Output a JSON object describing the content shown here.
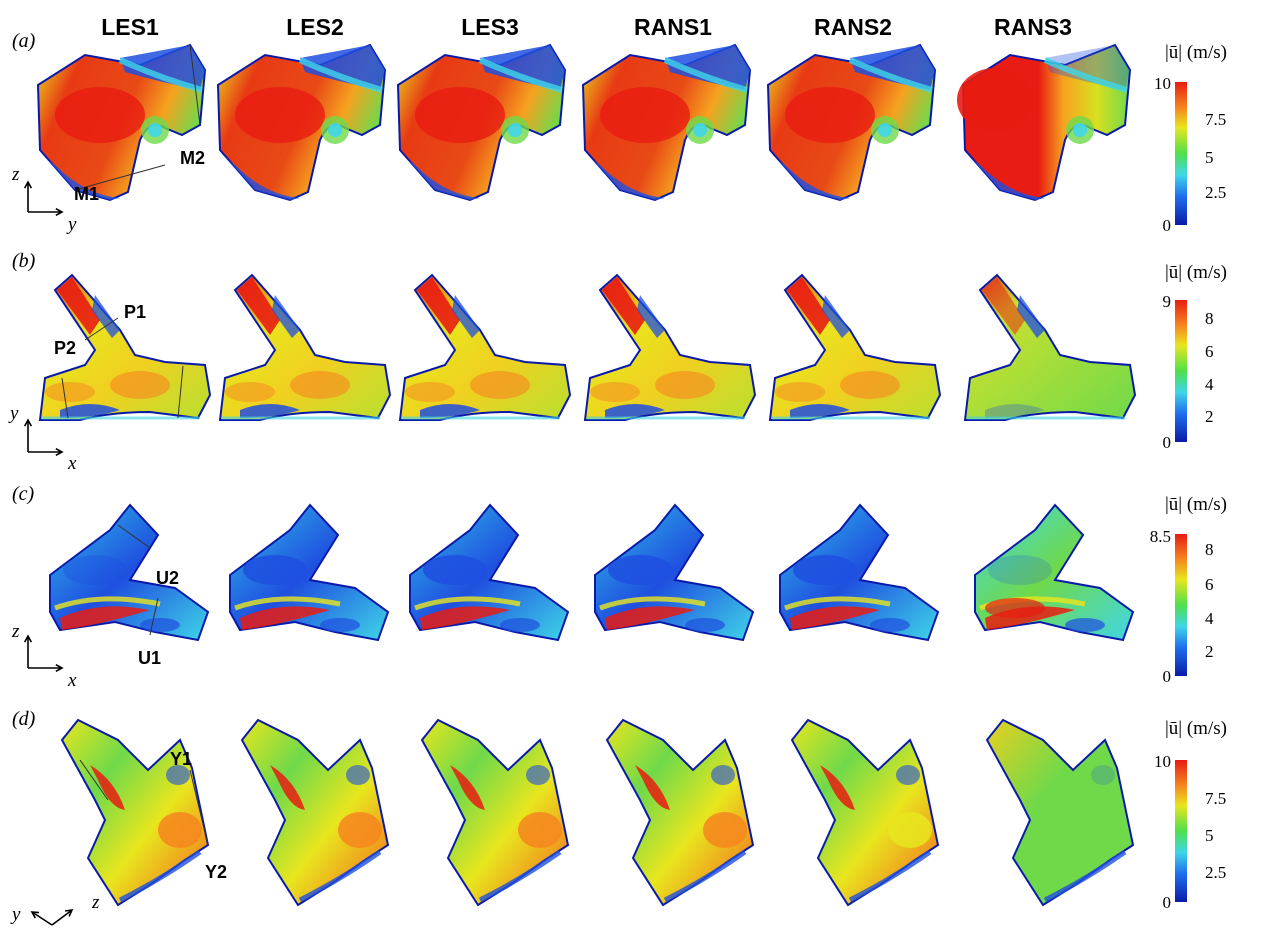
{
  "columns": [
    "LES1",
    "LES2",
    "LES3",
    "RANS1",
    "RANS2",
    "RANS3"
  ],
  "panels": [
    {
      "label": "(a)",
      "colorbar": {
        "title": "|ū| (m/s)",
        "min": "0",
        "max": "10",
        "ticks": [
          "7.5",
          "5",
          "2.5"
        ]
      },
      "markers": [
        "M1",
        "M2"
      ],
      "axes": [
        "z",
        "y"
      ]
    },
    {
      "label": "(b)",
      "colorbar": {
        "title": "|ū| (m/s)",
        "min": "0",
        "max": "9",
        "ticks": [
          "8",
          "6",
          "4",
          "2"
        ]
      },
      "markers": [
        "P1",
        "P2"
      ],
      "axes": [
        "y",
        "x"
      ]
    },
    {
      "label": "(c)",
      "colorbar": {
        "title": "|ū| (m/s)",
        "min": "0",
        "max": "8.5",
        "ticks": [
          "8",
          "6",
          "4",
          "2"
        ]
      },
      "markers": [
        "U2",
        "U1"
      ],
      "axes": [
        "z",
        "x"
      ]
    },
    {
      "label": "(d)",
      "colorbar": {
        "title": "|ū| (m/s)",
        "min": "0",
        "max": "10",
        "ticks": [
          "7.5",
          "5",
          "2.5"
        ]
      },
      "markers": [
        "Y1",
        "Y2"
      ],
      "axes": [
        "y",
        "z"
      ]
    }
  ],
  "colors": {
    "red": "#e81c12",
    "orange": "#f6861f",
    "yellow": "#e8e61e",
    "green": "#6fd94a",
    "cyan": "#3fd6e8",
    "blue": "#1f4fe0",
    "navy": "#0a1aa8"
  }
}
